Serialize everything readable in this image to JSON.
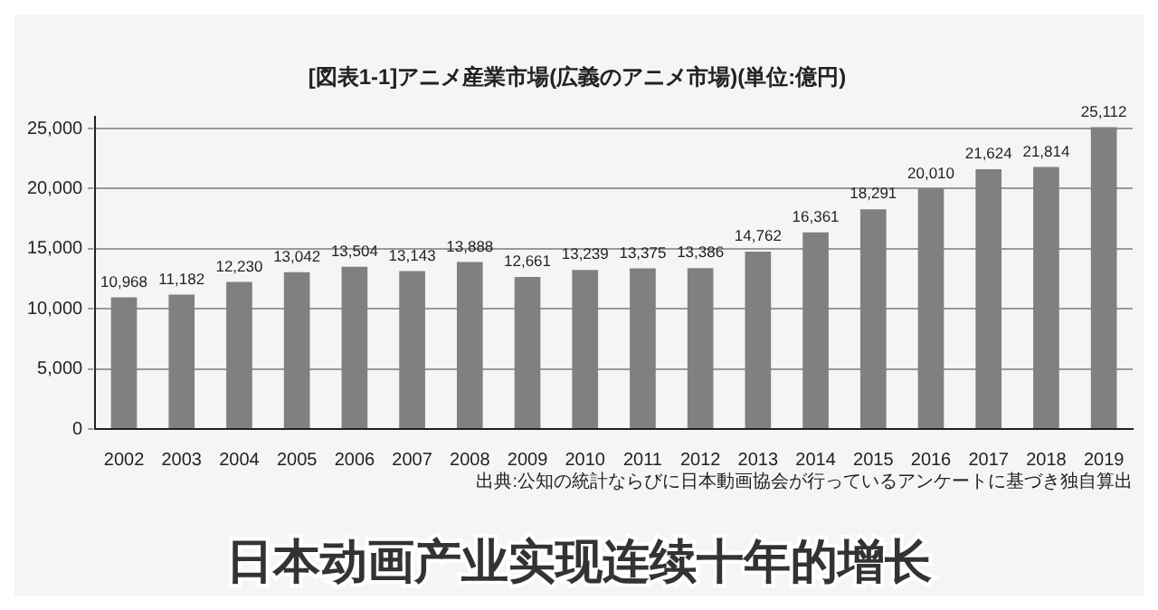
{
  "chart_data": {
    "type": "bar",
    "title": "[図表1-1]アニメ産業市場(広義のアニメ市場)(単位:億円)",
    "categories": [
      "2002",
      "2003",
      "2004",
      "2005",
      "2006",
      "2007",
      "2008",
      "2009",
      "2010",
      "2011",
      "2012",
      "2013",
      "2014",
      "2015",
      "2016",
      "2017",
      "2018",
      "2019"
    ],
    "values": [
      10968,
      11182,
      12230,
      13042,
      13504,
      13143,
      13888,
      12661,
      13239,
      13375,
      13386,
      14762,
      16361,
      18291,
      20010,
      21624,
      21814,
      25112
    ],
    "value_labels": [
      "10,968",
      "11,182",
      "12,230",
      "13,042",
      "13,504",
      "13,143",
      "13,888",
      "12,661",
      "13,239",
      "13,375",
      "13,386",
      "14,762",
      "16,361",
      "18,291",
      "20,010",
      "21,624",
      "21,814",
      "25,112"
    ],
    "color": "#808080",
    "ylim": [
      0,
      26000
    ],
    "yticks": [
      0,
      {
        "value": 5000,
        "label": "5,000"
      },
      {
        "value": 10000,
        "label": "10,000"
      },
      {
        "value": 15000,
        "label": "15,000"
      },
      {
        "value": 20000,
        "label": "20,000"
      },
      {
        "value": 25000,
        "label": "25,000"
      }
    ],
    "grid": "y",
    "annotations": [
      "出典:公知の統計ならびに日本動画協会が行っているアンケートに基づき独自算出",
      "日本动画产业实现连续十年的增长"
    ]
  }
}
